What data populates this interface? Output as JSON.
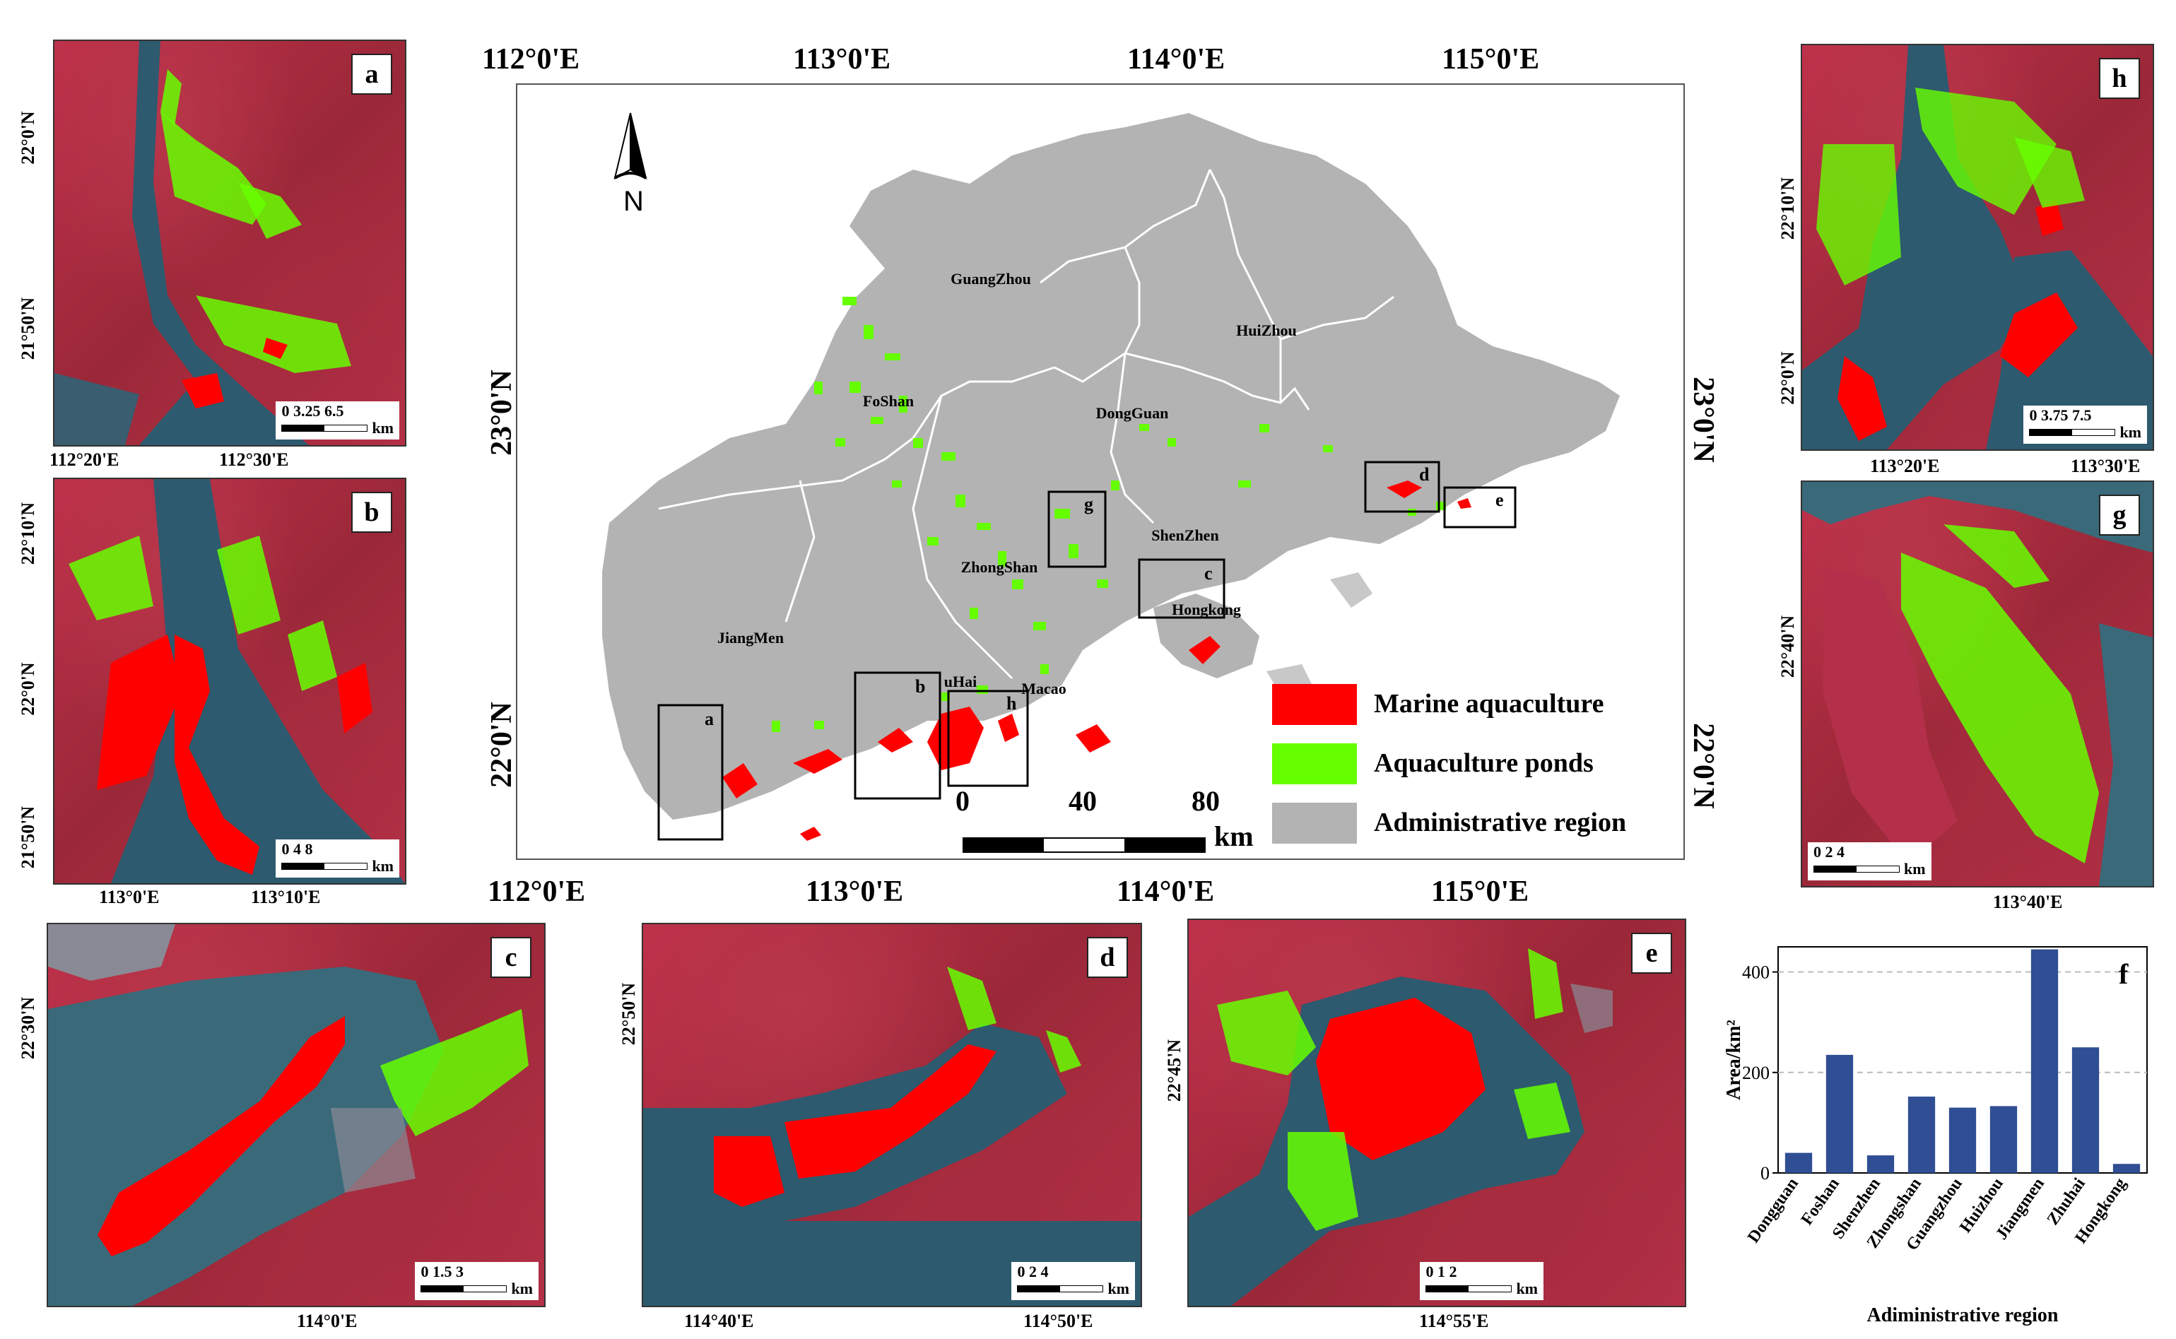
{
  "main_map": {
    "top_lon_labels": [
      "112°0'E",
      "113°0'E",
      "114°0'E",
      "115°0'E"
    ],
    "bottom_lon_labels": [
      "112°0'E",
      "113°0'E",
      "114°0'E",
      "115°0'E"
    ],
    "left_lat_labels": [
      "23°0'N",
      "22°0'N"
    ],
    "right_lat_labels": [
      "23°0'N",
      "22°0'N"
    ],
    "north_label": "N",
    "regions": [
      "GuangZhou",
      "HuiZhou",
      "FoShan",
      "DongGuan",
      "ShenZhen",
      "ZhongShan",
      "Hongkong",
      "JiangMen",
      "uHai",
      "Macao"
    ],
    "box_labels": [
      "a",
      "b",
      "c",
      "d",
      "e",
      "g",
      "h"
    ],
    "scale": {
      "ticks": [
        "0",
        "40",
        "80"
      ],
      "unit": "km"
    },
    "legend": [
      {
        "label": "Marine aquaculture",
        "color": "#ff0000"
      },
      {
        "label": "Aquaculture ponds",
        "color": "#66ff00"
      },
      {
        "label": "Administrative region",
        "color": "#b3b3b3"
      }
    ]
  },
  "insets": {
    "a": {
      "letter": "a",
      "lat_labels": [
        "22°0'N",
        "21°50'N"
      ],
      "lon_labels": [
        "112°20'E",
        "112°30'E"
      ],
      "scale_ticks": "0  3.25  6.5",
      "unit": "km"
    },
    "b": {
      "letter": "b",
      "lat_labels": [
        "22°10'N",
        "22°0'N",
        "21°50'N"
      ],
      "lon_labels": [
        "113°0'E",
        "113°10'E"
      ],
      "scale_ticks": "0    4     8",
      "unit": "km"
    },
    "c": {
      "letter": "c",
      "lat_labels": [
        "22°30'N"
      ],
      "lon_labels": [
        "114°0'E"
      ],
      "scale_ticks": "0   1.5    3",
      "unit": "km"
    },
    "d": {
      "letter": "d",
      "lat_labels": [
        "22°50'N"
      ],
      "lon_labels": [
        "114°40'E",
        "114°50'E"
      ],
      "scale_ticks": "0    2    4",
      "unit": "km"
    },
    "e": {
      "letter": "e",
      "lat_labels": [
        "22°45'N"
      ],
      "lon_labels": [
        "114°55'E"
      ],
      "scale_ticks": "0   1   2",
      "unit": "km"
    },
    "g": {
      "letter": "g",
      "lat_labels": [
        "22°40'N"
      ],
      "lon_labels": [
        "113°40'E"
      ],
      "scale_ticks": "0    2    4",
      "unit": "km"
    },
    "h": {
      "letter": "h",
      "lat_labels": [
        "22°10'N",
        "22°0'N"
      ],
      "lon_labels": [
        "113°20'E",
        "113°30'E"
      ],
      "scale_ticks": "0  3.75  7.5",
      "unit": "km"
    }
  },
  "chart_data": {
    "type": "bar",
    "panel_letter": "f",
    "categories": [
      "Dongguan",
      "Foshan",
      "Shenzhen",
      "Zhongshan",
      "Guangzhou",
      "Huizhou",
      "Jiangmen",
      "Zhuhai",
      "Hongkong"
    ],
    "values": [
      40,
      235,
      35,
      152,
      130,
      133,
      445,
      250,
      18
    ],
    "xlabel": "Adiministrative region",
    "ylabel": "Area/km²",
    "ylim": [
      0,
      450
    ],
    "yticks": [
      0,
      200,
      400
    ],
    "bar_color": "#2f4e94",
    "grid": "dashed horizontal at 200 and 400"
  }
}
